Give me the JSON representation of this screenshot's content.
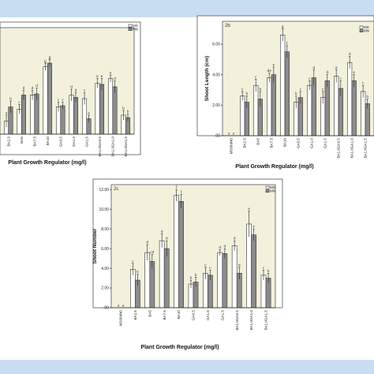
{
  "legend": {
    "ms": "MS",
    "mn": "MN"
  },
  "colors": {
    "ms": "#ffffff",
    "mn": "#8c8c8c",
    "plot_bg": "#f3f1dc"
  },
  "chart_data": [
    {
      "id": "2a",
      "type": "bar",
      "panel_tag": "",
      "ylabel": "",
      "xlabel": "Plant Growth Regulator (mg/l)",
      "ylim": [
        0,
        9
      ],
      "yticks": [],
      "categories": [
        "BA2.5",
        "BA5",
        "BA7.5",
        "BA10",
        "GA0.5",
        "GA1.0",
        "GA1.5",
        "BA1.0GA0.5",
        "BA1.0GA1.0",
        "BA1.0GA1.5"
      ],
      "cat_labels": [
        "BA2.5",
        "BA5",
        "BA7.5",
        "BA10",
        "GA0.5",
        "GA1.0",
        "GA1.5",
        "BA1.0GA0.5",
        "BA1.0GA1.0",
        "BA1.0GA1.5"
      ],
      "series": [
        {
          "name": "MS",
          "values": [
            1.1,
            2.1,
            3.3,
            5.7,
            2.3,
            3.3,
            3.0,
            4.3,
            4.7,
            1.6
          ]
        },
        {
          "name": "MN",
          "values": [
            2.3,
            3.3,
            3.4,
            6.0,
            2.4,
            3.1,
            1.3,
            4.2,
            4.0,
            1.4
          ]
        }
      ],
      "errors": [
        [
          0.5,
          0.4,
          0.4,
          0.3,
          0.4,
          0.5,
          0.5,
          0.4,
          0.3,
          0.4
        ],
        [
          0.5,
          0.4,
          0.5,
          0.3,
          0.3,
          0.4,
          0.3,
          0.5,
          0.5,
          0.3
        ]
      ],
      "letters": [
        [
          "a",
          "c",
          "d",
          "g",
          "c",
          "d",
          "c",
          "e",
          "e",
          "b"
        ],
        [
          "b",
          "d",
          "d",
          "g",
          "c",
          "d",
          "a",
          "e",
          "d",
          "b"
        ]
      ],
      "first_cat_labels": [
        "",
        ""
      ]
    },
    {
      "id": "2b",
      "type": "bar",
      "panel_tag": "2b",
      "ylabel": "Shoot Length (cm)",
      "xlabel": "Plant Growth Regulator (mg/l)",
      "ylim": [
        0,
        7.5
      ],
      "yticks": [
        ".00",
        "2.00",
        "4.00",
        "6.00"
      ],
      "categories": [
        "MS0/MN0",
        "BA2.5",
        "BA5",
        "BA7.5",
        "BA10",
        "GA0.5",
        "GA1.0",
        "GA1.5",
        "BA1.0GA0.5",
        "BA1.0GA1.0",
        "BA1.0GA1.5"
      ],
      "cat_labels": [
        "MS0/MN0",
        "BA2.5",
        "BA5",
        "BA7.5",
        "BA10",
        "GA0.5",
        "GA1.0",
        "GA1.5",
        "BA1.0GA0.5",
        "BA1.0GA1.0",
        "BA1.0GA1.5"
      ],
      "series": [
        {
          "name": "MS",
          "values": [
            0.0,
            2.6,
            3.3,
            3.8,
            6.6,
            2.2,
            3.3,
            2.5,
            3.9,
            4.8,
            2.9
          ]
        },
        {
          "name": "MN",
          "values": [
            0.0,
            2.2,
            2.4,
            4.0,
            5.5,
            2.5,
            3.8,
            3.6,
            3.1,
            3.6,
            2.1
          ]
        }
      ],
      "errors": [
        [
          0,
          0.3,
          0.4,
          0.3,
          0.4,
          0.4,
          0.3,
          0.4,
          0.4,
          0.4,
          0.4
        ],
        [
          0,
          0.4,
          0.5,
          0.5,
          0.4,
          0.4,
          0.5,
          0.4,
          0.5,
          0.4,
          0.3
        ]
      ],
      "letters": [
        [
          "a",
          "c",
          "c",
          "de",
          "g",
          "b",
          "c",
          "c",
          "d",
          "d",
          "c"
        ],
        [
          "a",
          "b",
          "b",
          "e",
          "f",
          "c",
          "d",
          "d",
          "c",
          "e",
          "b"
        ]
      ]
    },
    {
      "id": "2c",
      "type": "bar",
      "panel_tag": "2c",
      "ylabel": "Shoot Number",
      "xlabel": "Plant Growth Regulator (mg/l)",
      "ylim": [
        0,
        12.5
      ],
      "yticks": [
        ".00",
        "2.00",
        "4.00",
        "6.00",
        "8.00",
        "10.00",
        "12.00"
      ],
      "categories": [
        "MS0/MN0",
        "BA2.5",
        "BA5",
        "BA7.5",
        "BA10",
        "GA0.5",
        "GA1.0",
        "GA1.5",
        "BA1.0GA0.5",
        "BA1.0GA1.0",
        "BA1.0GA1.5"
      ],
      "cat_labels": [
        "MS0/MN0",
        "BA2.5",
        "BA5",
        "BA7.5",
        "BA10",
        "GA0.5",
        "GA1.0",
        "GA1.5",
        "BA1.0GA0.5",
        "BA1.0GA1.0",
        "BA1.0GA1.5"
      ],
      "series": [
        {
          "name": "MS",
          "values": [
            0.0,
            3.9,
            5.6,
            6.8,
            11.4,
            2.4,
            3.5,
            5.6,
            6.3,
            8.5,
            3.3
          ]
        },
        {
          "name": "MN",
          "values": [
            0.0,
            2.8,
            4.7,
            6.0,
            10.8,
            2.6,
            3.3,
            5.5,
            3.5,
            7.4,
            3.0
          ]
        }
      ],
      "errors": [
        [
          0,
          0.6,
          0.8,
          0.7,
          0.6,
          0.4,
          0.6,
          0.3,
          0.5,
          1.3,
          0.5
        ],
        [
          0,
          0.6,
          0.7,
          0.8,
          0.7,
          0.5,
          0.5,
          0.5,
          0.6,
          0.6,
          0.5
        ]
      ],
      "letters": [
        [
          "a",
          "c",
          "d",
          "d",
          "f",
          "b",
          "c",
          "d",
          "d",
          "e",
          "c"
        ],
        [
          "a",
          "b",
          "cd",
          "d",
          "f",
          "b",
          "c",
          "d",
          "d",
          "e",
          "b"
        ]
      ]
    }
  ]
}
